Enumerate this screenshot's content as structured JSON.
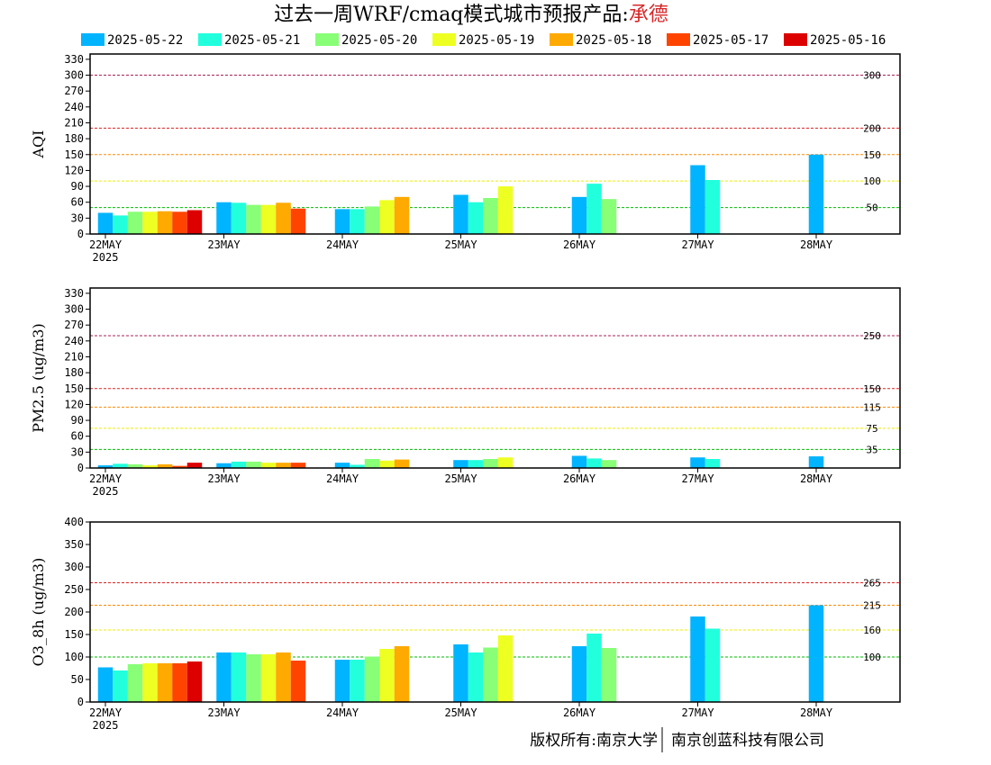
{
  "title": {
    "main": "过去一周WRF/cmaq模式城市预报产品:",
    "city": "承德",
    "city_color": "#d62728"
  },
  "footer": {
    "left": "版权所有:南京大学",
    "right": "南京创蓝科技有限公司"
  },
  "legend": [
    {
      "label": "2025-05-22",
      "color": "#00b4ff"
    },
    {
      "label": "2025-05-21",
      "color": "#22ffdd"
    },
    {
      "label": "2025-05-20",
      "color": "#88ff77"
    },
    {
      "label": "2025-05-19",
      "color": "#eeff22"
    },
    {
      "label": "2025-05-18",
      "color": "#ffaa00"
    },
    {
      "label": "2025-05-17",
      "color": "#ff4400"
    },
    {
      "label": "2025-05-16",
      "color": "#dd0000"
    }
  ],
  "chart_data": [
    {
      "type": "bar",
      "ylabel": "AQI",
      "categories": [
        "22MAY",
        "23MAY",
        "24MAY",
        "25MAY",
        "26MAY",
        "27MAY",
        "28MAY"
      ],
      "year_label": "2025",
      "ylim": [
        0,
        340
      ],
      "yticks": [
        0,
        30,
        60,
        90,
        120,
        150,
        180,
        210,
        240,
        270,
        300,
        330
      ],
      "thresholds": [
        {
          "value": 300,
          "label": "300",
          "color": "#aa2255"
        },
        {
          "value": 200,
          "label": "200",
          "color": "#dd2222"
        },
        {
          "value": 150,
          "label": "150",
          "color": "#ff8800"
        },
        {
          "value": 100,
          "label": "100",
          "color": "#eeee00"
        },
        {
          "value": 50,
          "label": "50",
          "color": "#00bb00"
        }
      ],
      "series": [
        {
          "name": "2025-05-22",
          "values": [
            40,
            60,
            47,
            74,
            70,
            130,
            150
          ]
        },
        {
          "name": "2025-05-21",
          "values": [
            35,
            59,
            47,
            60,
            95,
            102,
            null
          ]
        },
        {
          "name": "2025-05-20",
          "values": [
            42,
            55,
            52,
            68,
            66,
            null,
            null
          ]
        },
        {
          "name": "2025-05-19",
          "values": [
            42,
            55,
            64,
            90,
            null,
            null,
            null
          ]
        },
        {
          "name": "2025-05-18",
          "values": [
            43,
            59,
            70,
            null,
            null,
            null,
            null
          ]
        },
        {
          "name": "2025-05-17",
          "values": [
            42,
            48,
            null,
            null,
            null,
            null,
            null
          ]
        },
        {
          "name": "2025-05-16",
          "values": [
            45,
            null,
            null,
            null,
            null,
            null,
            null
          ]
        }
      ]
    },
    {
      "type": "bar",
      "ylabel": "PM2.5 (ug/m3)",
      "categories": [
        "22MAY",
        "23MAY",
        "24MAY",
        "25MAY",
        "26MAY",
        "27MAY",
        "28MAY"
      ],
      "year_label": "2025",
      "ylim": [
        0,
        340
      ],
      "yticks": [
        0,
        30,
        60,
        90,
        120,
        150,
        180,
        210,
        240,
        270,
        300,
        330
      ],
      "thresholds": [
        {
          "value": 250,
          "label": "250",
          "color": "#aa2255"
        },
        {
          "value": 150,
          "label": "150",
          "color": "#dd2222"
        },
        {
          "value": 115,
          "label": "115",
          "color": "#ff8800"
        },
        {
          "value": 75,
          "label": "75",
          "color": "#eeee00"
        },
        {
          "value": 35,
          "label": "35",
          "color": "#00bb00"
        }
      ],
      "series": [
        {
          "name": "2025-05-22",
          "values": [
            5,
            9,
            10,
            15,
            23,
            20,
            22
          ]
        },
        {
          "name": "2025-05-21",
          "values": [
            8,
            12,
            6,
            15,
            18,
            17,
            null
          ]
        },
        {
          "name": "2025-05-20",
          "values": [
            7,
            12,
            17,
            17,
            15,
            null,
            null
          ]
        },
        {
          "name": "2025-05-19",
          "values": [
            5,
            10,
            14,
            20,
            null,
            null,
            null
          ]
        },
        {
          "name": "2025-05-18",
          "values": [
            7,
            10,
            16,
            null,
            null,
            null,
            null
          ]
        },
        {
          "name": "2025-05-17",
          "values": [
            4,
            10,
            null,
            null,
            null,
            null,
            null
          ]
        },
        {
          "name": "2025-05-16",
          "values": [
            10,
            null,
            null,
            null,
            null,
            null,
            null
          ]
        }
      ]
    },
    {
      "type": "bar",
      "ylabel": "O3_8h (ug/m3)",
      "categories": [
        "22MAY",
        "23MAY",
        "24MAY",
        "25MAY",
        "26MAY",
        "27MAY",
        "28MAY"
      ],
      "year_label": "2025",
      "ylim": [
        0,
        400
      ],
      "yticks": [
        0,
        50,
        100,
        150,
        200,
        250,
        300,
        350,
        400
      ],
      "thresholds": [
        {
          "value": 265,
          "label": "265",
          "color": "#dd2222"
        },
        {
          "value": 215,
          "label": "215",
          "color": "#ff8800"
        },
        {
          "value": 160,
          "label": "160",
          "color": "#eeee00"
        },
        {
          "value": 100,
          "label": "100",
          "color": "#00bb00"
        }
      ],
      "series": [
        {
          "name": "2025-05-22",
          "values": [
            77,
            110,
            94,
            128,
            124,
            190,
            215
          ]
        },
        {
          "name": "2025-05-21",
          "values": [
            70,
            110,
            94,
            110,
            152,
            163,
            null
          ]
        },
        {
          "name": "2025-05-20",
          "values": [
            84,
            106,
            101,
            121,
            120,
            null,
            null
          ]
        },
        {
          "name": "2025-05-19",
          "values": [
            86,
            106,
            118,
            148,
            null,
            null,
            null
          ]
        },
        {
          "name": "2025-05-18",
          "values": [
            86,
            110,
            124,
            null,
            null,
            null,
            null
          ]
        },
        {
          "name": "2025-05-17",
          "values": [
            86,
            92,
            null,
            null,
            null,
            null,
            null
          ]
        },
        {
          "name": "2025-05-16",
          "values": [
            90,
            null,
            null,
            null,
            null,
            null,
            null
          ]
        }
      ]
    }
  ]
}
